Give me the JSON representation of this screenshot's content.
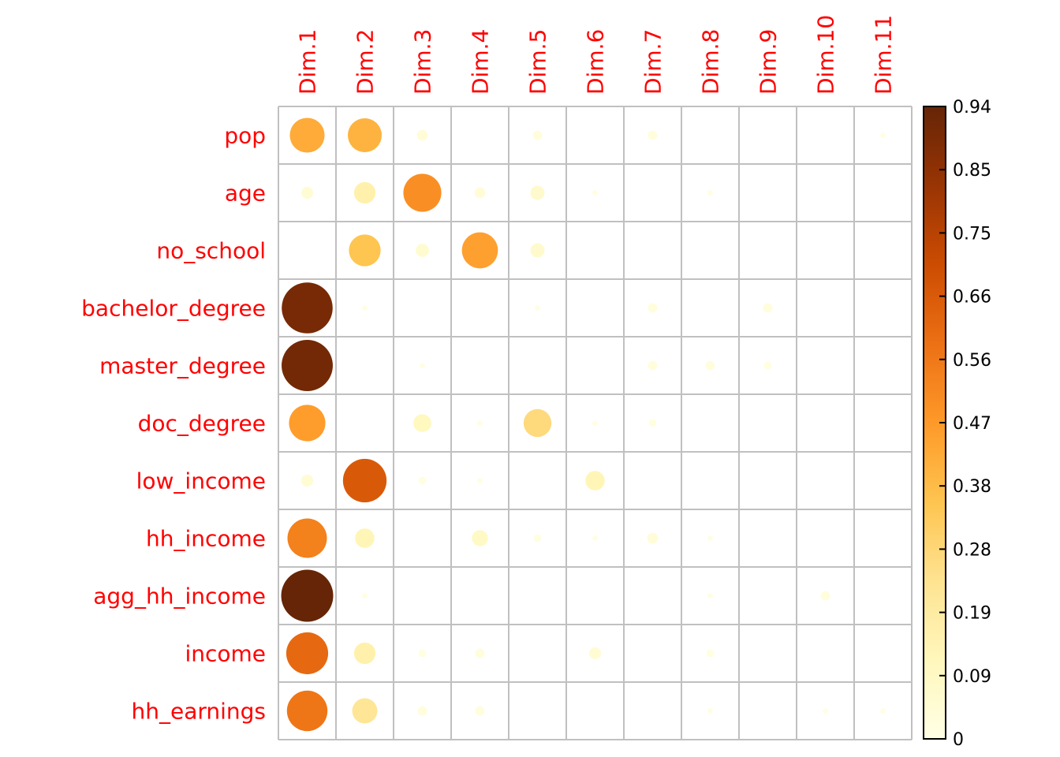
{
  "chart_data": {
    "type": "heatmap",
    "columns": [
      "Dim.1",
      "Dim.2",
      "Dim.3",
      "Dim.4",
      "Dim.5",
      "Dim.6",
      "Dim.7",
      "Dim.8",
      "Dim.9",
      "Dim.10",
      "Dim.11"
    ],
    "rows": [
      "pop",
      "age",
      "no_school",
      "bachelor_degree",
      "master_degree",
      "doc_degree",
      "low_income",
      "hh_income",
      "agg_hh_income",
      "income",
      "hh_earnings"
    ],
    "values": [
      [
        0.42,
        0.4,
        0.04,
        0.0,
        0.03,
        0.0,
        0.03,
        0.0,
        0.0,
        0.0,
        0.01
      ],
      [
        0.05,
        0.16,
        0.5,
        0.04,
        0.07,
        0.01,
        0.0,
        0.01,
        0.0,
        0.0,
        0.0
      ],
      [
        0.0,
        0.35,
        0.06,
        0.45,
        0.07,
        0.0,
        0.0,
        0.0,
        0.0,
        0.0,
        0.0
      ],
      [
        0.9,
        0.01,
        0.0,
        0.0,
        0.01,
        0.0,
        0.03,
        0.0,
        0.03,
        0.0,
        0.0
      ],
      [
        0.91,
        0.0,
        0.01,
        0.0,
        0.0,
        0.0,
        0.03,
        0.03,
        0.02,
        0.0,
        0.0
      ],
      [
        0.46,
        0.0,
        0.11,
        0.01,
        0.27,
        0.01,
        0.02,
        0.0,
        0.0,
        0.0,
        0.0
      ],
      [
        0.05,
        0.66,
        0.02,
        0.01,
        0.0,
        0.13,
        0.0,
        0.0,
        0.0,
        0.0,
        0.0
      ],
      [
        0.54,
        0.13,
        0.0,
        0.09,
        0.02,
        0.01,
        0.04,
        0.01,
        0.0,
        0.0,
        0.0
      ],
      [
        0.94,
        0.01,
        0.0,
        0.0,
        0.0,
        0.0,
        0.0,
        0.01,
        0.0,
        0.03,
        0.0
      ],
      [
        0.61,
        0.16,
        0.02,
        0.03,
        0.0,
        0.05,
        0.0,
        0.02,
        0.0,
        0.0,
        0.0
      ],
      [
        0.57,
        0.22,
        0.03,
        0.03,
        0.0,
        0.0,
        0.0,
        0.01,
        0.0,
        0.01,
        0.01
      ]
    ],
    "colorbar": {
      "min": 0,
      "max": 0.94,
      "ticks": [
        "0",
        "0.09",
        "0.19",
        "0.28",
        "0.38",
        "0.47",
        "0.56",
        "0.66",
        "0.75",
        "0.85",
        "0.94"
      ],
      "colors": [
        "#ffffe5",
        "#fff7bc",
        "#fee391",
        "#fec44f",
        "#fe9929",
        "#ec7014",
        "#cc4c02",
        "#993404",
        "#662506"
      ]
    },
    "label_color": "#ff0000",
    "grid_color": "#c0c0c0"
  }
}
